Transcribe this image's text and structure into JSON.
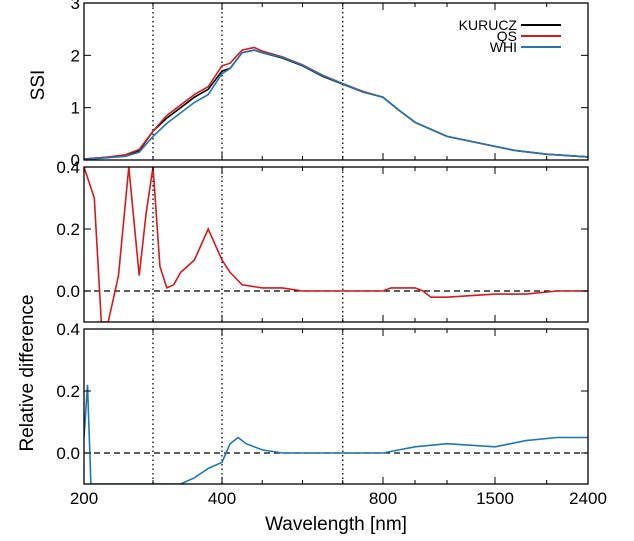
{
  "chart_data": [
    {
      "type": "line",
      "panel": "top",
      "ylabel": "SSI",
      "ylim": [
        0,
        3
      ],
      "yticks": [
        "0",
        "1",
        "2",
        "3"
      ],
      "x_scale": "piecewise (200-400, 400-800, 800-1500, 1500-2400 nm)",
      "xlim": [
        200,
        2400
      ],
      "series": [
        {
          "name": "KURUCZ",
          "color": "#000000",
          "x": [
            200,
            230,
            260,
            280,
            300,
            320,
            340,
            360,
            380,
            400,
            420,
            450,
            480,
            500,
            550,
            600,
            650,
            700,
            750,
            800,
            900,
            1000,
            1200,
            1500,
            1700,
            2000,
            2400
          ],
          "y": [
            0.02,
            0.05,
            0.08,
            0.18,
            0.55,
            0.8,
            1.0,
            1.2,
            1.35,
            1.7,
            1.75,
            2.05,
            2.1,
            2.05,
            1.95,
            1.8,
            1.6,
            1.45,
            1.3,
            1.2,
            0.95,
            0.72,
            0.45,
            0.26,
            0.18,
            0.11,
            0.06
          ]
        },
        {
          "name": "QS",
          "color": "#d7191c",
          "x": [
            200,
            230,
            260,
            280,
            300,
            320,
            340,
            360,
            380,
            400,
            420,
            450,
            480,
            500,
            550,
            600,
            650,
            700,
            750,
            800,
            900,
            1000,
            1200,
            1500,
            1700,
            2000,
            2400
          ],
          "y": [
            0.02,
            0.05,
            0.1,
            0.2,
            0.55,
            0.85,
            1.05,
            1.25,
            1.4,
            1.8,
            1.85,
            2.1,
            2.15,
            2.08,
            1.97,
            1.82,
            1.62,
            1.46,
            1.31,
            1.2,
            0.95,
            0.72,
            0.45,
            0.26,
            0.18,
            0.11,
            0.06
          ]
        },
        {
          "name": "WHI",
          "color": "#1f77b4",
          "x": [
            200,
            230,
            260,
            280,
            300,
            320,
            340,
            360,
            380,
            400,
            420,
            450,
            480,
            500,
            550,
            600,
            650,
            700,
            750,
            800,
            900,
            1000,
            1200,
            1500,
            1700,
            2000,
            2400
          ],
          "y": [
            0.01,
            0.04,
            0.07,
            0.15,
            0.45,
            0.7,
            0.9,
            1.1,
            1.25,
            1.65,
            1.75,
            2.05,
            2.1,
            2.05,
            1.96,
            1.81,
            1.61,
            1.46,
            1.3,
            1.2,
            0.95,
            0.72,
            0.45,
            0.26,
            0.18,
            0.11,
            0.06
          ]
        }
      ]
    },
    {
      "type": "line",
      "panel": "middle",
      "ylim": [
        -0.1,
        0.4
      ],
      "yticks": [
        "0.0",
        "0.2",
        "0.4"
      ],
      "series": [
        {
          "color": "#d7191c",
          "x": [
            200,
            215,
            225,
            235,
            250,
            265,
            280,
            290,
            300,
            310,
            320,
            330,
            340,
            360,
            380,
            400,
            420,
            450,
            500,
            550,
            600,
            700,
            800,
            850,
            900,
            1000,
            1050,
            1100,
            1200,
            1500,
            1800,
            2100,
            2400
          ],
          "y": [
            0.4,
            0.3,
            -0.1,
            -0.1,
            0.05,
            0.4,
            0.05,
            0.25,
            0.4,
            0.08,
            0.01,
            0.02,
            0.06,
            0.1,
            0.2,
            0.1,
            0.06,
            0.02,
            0.01,
            0.01,
            0.0,
            0.0,
            0.0,
            0.01,
            0.01,
            0.01,
            0.0,
            -0.02,
            -0.02,
            -0.01,
            -0.01,
            0.0,
            0.0
          ]
        }
      ]
    },
    {
      "type": "line",
      "panel": "bottom",
      "ylim": [
        -0.1,
        0.4
      ],
      "yticks": [
        "0.0",
        "0.2",
        "0.4"
      ],
      "series": [
        {
          "color": "#1f77b4",
          "x": [
            200,
            205,
            210,
            220,
            240,
            260,
            280,
            300,
            320,
            340,
            360,
            380,
            400,
            420,
            440,
            460,
            500,
            550,
            600,
            700,
            800,
            900,
            1000,
            1200,
            1500,
            1800,
            2100,
            2400
          ],
          "y": [
            0.05,
            0.22,
            -0.1,
            -0.1,
            -0.1,
            -0.1,
            -0.1,
            -0.1,
            -0.1,
            -0.1,
            -0.08,
            -0.05,
            -0.03,
            0.03,
            0.05,
            0.03,
            0.01,
            0.0,
            0.0,
            0.0,
            0.0,
            0.01,
            0.02,
            0.03,
            0.02,
            0.04,
            0.05,
            0.05
          ]
        }
      ]
    }
  ],
  "axes": {
    "xlabel": "Wavelength [nm]",
    "shared_ylabel": "Relative difference",
    "xticks": [
      "200",
      "400",
      "800",
      "1500",
      "2400"
    ],
    "vlines_nm": [
      300,
      400,
      700
    ]
  },
  "colors": {
    "kurucz": "#000000",
    "qs": "#d7191c",
    "whi": "#1f77b4"
  }
}
